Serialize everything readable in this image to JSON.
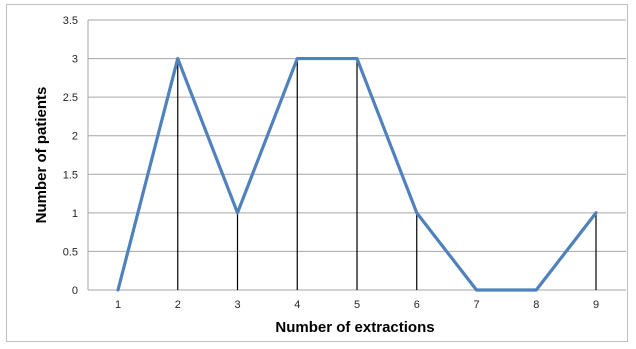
{
  "chart_data": {
    "type": "line",
    "title": "",
    "xlabel": "Number of extractions",
    "ylabel": "Number of patients",
    "categories": [
      "1",
      "2",
      "3",
      "4",
      "5",
      "6",
      "7",
      "8",
      "9"
    ],
    "x": [
      1,
      2,
      3,
      4,
      5,
      6,
      7,
      8,
      9
    ],
    "values": [
      0,
      3,
      1,
      3,
      3,
      1,
      0,
      0,
      1
    ],
    "ylim": [
      0,
      3.5
    ],
    "yticks": [
      "0",
      "0.5",
      "1",
      "1.5",
      "2",
      "2.5",
      "3",
      "3.5"
    ],
    "grid": true,
    "legend": "none",
    "drop_lines": true,
    "line_color": "#4f81bd",
    "grid_color": "#a6a6a6",
    "drop_line_color": "#000000"
  }
}
